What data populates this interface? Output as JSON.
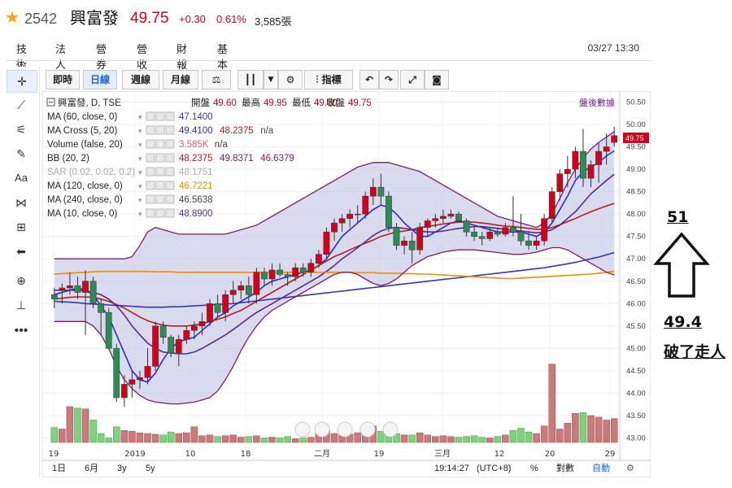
{
  "header": {
    "star": "★",
    "code": "2542",
    "name": "興富發",
    "price": "49.75",
    "change": "+0.30",
    "change_pct": "0.61%",
    "volume": "3,585張"
  },
  "tabs": [
    "技術",
    "法人",
    "營券",
    "營收",
    "財報",
    "基本"
  ],
  "tabs_active": 0,
  "datetime": "03/27 13:30",
  "toolbar": {
    "buttons": [
      "即時",
      "日線",
      "週線",
      "月線"
    ],
    "active": 1,
    "indicators": "指標"
  },
  "legend": {
    "title": "興富發, D, TSE",
    "ohlc_labels": [
      "開盤",
      "最高",
      "最低",
      "收盤"
    ],
    "ohlc_values": [
      "49.60",
      "49.95",
      "49.50",
      "49.75"
    ],
    "after_hours": "盤後數據",
    "rows": [
      {
        "label": "MA (60, close, 0)",
        "values": [
          "47.1400"
        ],
        "colors": [
          "#3a36a8"
        ]
      },
      {
        "label": "MA Cross (5, 20)",
        "values": [
          "49.4100",
          "48.2375",
          "n/a"
        ],
        "colors": [
          "#2c2cd0",
          "#b02020",
          "#444"
        ]
      },
      {
        "label": "Volume (false, 20)",
        "values": [
          "3.585K",
          "n/a"
        ],
        "colors": [
          "#e06060",
          "#444"
        ]
      },
      {
        "label": "BB (20, 2)",
        "values": [
          "48.2375",
          "49.8371",
          "46.6379"
        ],
        "colors": [
          "#b02020",
          "#7a2060",
          "#7a2060"
        ]
      },
      {
        "label": "SAR (0.02, 0.02, 0.2)",
        "values": [
          "48.1751"
        ],
        "colors": [
          "#aaaaaa"
        ]
      },
      {
        "label": "MA (120, close, 0)",
        "values": [
          "46.7221"
        ],
        "colors": [
          "#f08c00"
        ]
      },
      {
        "label": "MA (240, close, 0)",
        "values": [
          "46.5638"
        ],
        "colors": [
          "#444"
        ]
      },
      {
        "label": "MA (10, close, 0)",
        "values": [
          "48.8900"
        ],
        "colors": [
          "#5a2c80"
        ]
      }
    ]
  },
  "x_labels": [
    "19",
    "2019",
    "10",
    "18",
    "二月",
    "19",
    "三月",
    "12",
    "20",
    "29"
  ],
  "bottom": {
    "ranges": [
      "1日",
      "6月",
      "3y",
      "5y"
    ],
    "clock": "19:14:27",
    "tz": "(UTC+8)",
    "pct": "%",
    "log": "對數",
    "auto": "自動"
  },
  "price_tag": "49.75",
  "annotations": {
    "high": "51",
    "low": "49.4",
    "note": "破了走人"
  },
  "colors": {
    "up": "#d0021b",
    "down": "#2e8b57",
    "band": "#b9bbe0",
    "accent": "#1e63d6"
  },
  "chart_data": {
    "type": "candlestick",
    "ylim": [
      42.9,
      50.6
    ],
    "yticks": [
      50.5,
      50.0,
      49.5,
      49.0,
      48.5,
      48.0,
      47.5,
      47.0,
      46.5,
      46.0,
      45.5,
      45.0,
      44.5,
      44.0,
      43.5,
      43.0
    ],
    "ohlc": [
      [
        46.2,
        46.35,
        45.9,
        46.1
      ],
      [
        46.3,
        46.45,
        46.0,
        46.35
      ],
      [
        46.35,
        46.7,
        46.2,
        46.4
      ],
      [
        46.4,
        46.6,
        46.1,
        46.25
      ],
      [
        46.25,
        46.75,
        45.3,
        46.5
      ],
      [
        46.5,
        46.6,
        45.9,
        46.0
      ],
      [
        46.0,
        46.1,
        45.3,
        45.8
      ],
      [
        45.8,
        45.9,
        45.0,
        45.0
      ],
      [
        45.0,
        45.1,
        43.8,
        43.9
      ],
      [
        43.9,
        44.4,
        43.7,
        44.2
      ],
      [
        44.2,
        44.5,
        43.9,
        44.3
      ],
      [
        44.3,
        44.5,
        44.1,
        44.35
      ],
      [
        44.35,
        45.0,
        44.2,
        44.6
      ],
      [
        44.6,
        45.6,
        44.5,
        45.5
      ],
      [
        45.5,
        45.6,
        45.1,
        45.25
      ],
      [
        45.25,
        45.3,
        44.8,
        44.9
      ],
      [
        44.9,
        45.3,
        44.6,
        45.2
      ],
      [
        45.2,
        45.5,
        45.1,
        45.4
      ],
      [
        45.4,
        45.6,
        45.2,
        45.5
      ],
      [
        45.5,
        45.8,
        45.3,
        45.6
      ],
      [
        45.6,
        46.1,
        45.5,
        46.0
      ],
      [
        46.0,
        46.2,
        45.7,
        45.8
      ],
      [
        45.8,
        46.3,
        45.6,
        46.2
      ],
      [
        46.2,
        46.5,
        46.0,
        46.3
      ],
      [
        46.3,
        46.5,
        46.1,
        46.4
      ],
      [
        46.4,
        46.6,
        46.0,
        46.2
      ],
      [
        46.2,
        46.8,
        46.0,
        46.7
      ],
      [
        46.7,
        46.8,
        46.4,
        46.55
      ],
      [
        46.55,
        46.9,
        46.4,
        46.75
      ],
      [
        46.75,
        46.9,
        46.6,
        46.65
      ],
      [
        46.65,
        46.7,
        46.4,
        46.6
      ],
      [
        46.6,
        46.9,
        46.5,
        46.8
      ],
      [
        46.8,
        46.9,
        46.6,
        46.7
      ],
      [
        46.7,
        47.0,
        46.6,
        46.9
      ],
      [
        46.9,
        47.2,
        46.8,
        47.1
      ],
      [
        47.1,
        47.7,
        47.0,
        47.6
      ],
      [
        47.6,
        47.9,
        47.4,
        47.8
      ],
      [
        47.8,
        48.0,
        47.6,
        47.9
      ],
      [
        47.9,
        48.1,
        47.7,
        48.0
      ],
      [
        48.0,
        48.2,
        47.8,
        48.0
      ],
      [
        48.0,
        48.5,
        47.9,
        48.4
      ],
      [
        48.4,
        48.8,
        48.2,
        48.6
      ],
      [
        48.6,
        48.9,
        48.2,
        48.4
      ],
      [
        48.4,
        48.5,
        47.6,
        47.7
      ],
      [
        47.7,
        47.8,
        47.2,
        47.3
      ],
      [
        47.3,
        47.5,
        47.1,
        47.4
      ],
      [
        47.4,
        47.6,
        46.9,
        47.2
      ],
      [
        47.2,
        47.8,
        47.1,
        47.7
      ],
      [
        47.7,
        47.9,
        47.5,
        47.85
      ],
      [
        47.85,
        48.0,
        47.7,
        47.9
      ],
      [
        47.9,
        48.1,
        47.8,
        47.95
      ],
      [
        47.95,
        48.1,
        47.9,
        48.0
      ],
      [
        48.0,
        48.05,
        47.8,
        47.85
      ],
      [
        47.85,
        47.9,
        47.5,
        47.6
      ],
      [
        47.6,
        47.7,
        47.4,
        47.5
      ],
      [
        47.5,
        47.6,
        47.3,
        47.45
      ],
      [
        47.45,
        47.7,
        47.4,
        47.6
      ],
      [
        47.6,
        47.7,
        47.5,
        47.55
      ],
      [
        47.55,
        47.8,
        47.5,
        47.7
      ],
      [
        47.7,
        48.4,
        47.5,
        47.6
      ],
      [
        47.6,
        48.0,
        47.3,
        47.4
      ],
      [
        47.4,
        47.6,
        47.2,
        47.3
      ],
      [
        47.3,
        47.5,
        47.2,
        47.4
      ],
      [
        47.4,
        48.0,
        47.3,
        47.9
      ],
      [
        47.9,
        48.6,
        47.8,
        48.5
      ],
      [
        48.5,
        49.0,
        48.3,
        48.9
      ],
      [
        48.9,
        49.3,
        48.6,
        49.0
      ],
      [
        49.0,
        49.5,
        48.8,
        49.4
      ],
      [
        49.4,
        49.9,
        48.6,
        48.8
      ],
      [
        48.8,
        49.2,
        48.6,
        49.1
      ],
      [
        49.1,
        49.6,
        48.7,
        49.4
      ],
      [
        49.4,
        49.8,
        49.1,
        49.5
      ],
      [
        49.6,
        49.95,
        49.5,
        49.75
      ]
    ],
    "volume_ylim": [
      0,
      12
    ],
    "volume": [
      2.0,
      1.8,
      4.8,
      4.6,
      4.5,
      3.0,
      1.2,
      0.6,
      2.1,
      1.6,
      1.5,
      1.3,
      1.2,
      1.1,
      1.0,
      1.4,
      1.2,
      1.3,
      2.1,
      0.9,
      1.0,
      0.8,
      0.9,
      1.0,
      0.7,
      0.8,
      0.9,
      0.6,
      0.7,
      0.6,
      0.8,
      0.5,
      0.6,
      0.7,
      1.4,
      1.6,
      1.2,
      1.0,
      1.1,
      1.3,
      1.8,
      2.2,
      1.5,
      1.3,
      1.2,
      1.0,
      1.0,
      1.3,
      1.0,
      0.8,
      0.9,
      0.8,
      0.7,
      0.8,
      0.9,
      0.7,
      0.6,
      0.8,
      1.0,
      1.6,
      1.9,
      1.4,
      1.2,
      2.2,
      10.5,
      1.8,
      2.6,
      3.9,
      4.0,
      3.6,
      3.4,
      3.0,
      3.2
    ],
    "series": [
      {
        "name": "MA (5)",
        "color": "#2c2cd0",
        "values": [
          46.2,
          46.25,
          46.3,
          46.35,
          46.3,
          46.2,
          45.95,
          45.7,
          45.3,
          44.9,
          44.5,
          44.3,
          44.25,
          44.45,
          44.75,
          45.0,
          45.15,
          45.2,
          45.25,
          45.4,
          45.55,
          45.7,
          45.8,
          45.95,
          46.05,
          46.15,
          46.25,
          46.4,
          46.5,
          46.55,
          46.6,
          46.65,
          46.7,
          46.75,
          46.85,
          47.0,
          47.25,
          47.5,
          47.65,
          47.8,
          47.95,
          48.1,
          48.2,
          48.15,
          48.0,
          47.8,
          47.65,
          47.5,
          47.5,
          47.6,
          47.7,
          47.8,
          47.85,
          47.8,
          47.75,
          47.7,
          47.65,
          47.6,
          47.6,
          47.6,
          47.6,
          47.55,
          47.5,
          47.6,
          47.8,
          48.1,
          48.4,
          48.75,
          48.95,
          49.05,
          49.15,
          49.3,
          49.41
        ]
      },
      {
        "name": "MA (20)",
        "color": "#b02020",
        "values": [
          46.1,
          46.12,
          46.14,
          46.15,
          46.15,
          46.14,
          46.1,
          46.05,
          45.98,
          45.9,
          45.8,
          45.7,
          45.62,
          45.56,
          45.52,
          45.5,
          45.5,
          45.5,
          45.52,
          45.55,
          45.6,
          45.65,
          45.7,
          45.78,
          45.85,
          45.95,
          46.05,
          46.15,
          46.25,
          46.35,
          46.45,
          46.55,
          46.65,
          46.75,
          46.85,
          46.95,
          47.05,
          47.12,
          47.2,
          47.28,
          47.35,
          47.42,
          47.5,
          47.55,
          47.6,
          47.62,
          47.65,
          47.7,
          47.72,
          47.75,
          47.78,
          47.8,
          47.82,
          47.82,
          47.82,
          47.8,
          47.78,
          47.75,
          47.73,
          47.72,
          47.7,
          47.68,
          47.66,
          47.66,
          47.7,
          47.76,
          47.83,
          47.9,
          47.98,
          48.05,
          48.12,
          48.18,
          48.24
        ]
      },
      {
        "name": "MA (10)",
        "color": "#5a2c80",
        "values": [
          46.3,
          46.3,
          46.3,
          46.3,
          46.28,
          46.25,
          46.2,
          46.1,
          45.95,
          45.75,
          45.5,
          45.3,
          45.12,
          45.0,
          44.92,
          44.9,
          44.88,
          44.88,
          44.92,
          45.0,
          45.1,
          45.2,
          45.3,
          45.42,
          45.55,
          45.68,
          45.8,
          45.9,
          46.0,
          46.1,
          46.2,
          46.3,
          46.4,
          46.5,
          46.6,
          46.72,
          46.85,
          47.0,
          47.12,
          47.25,
          47.38,
          47.52,
          47.62,
          47.68,
          47.7,
          47.68,
          47.65,
          47.62,
          47.6,
          47.6,
          47.62,
          47.65,
          47.68,
          47.7,
          47.72,
          47.72,
          47.7,
          47.68,
          47.66,
          47.64,
          47.62,
          47.6,
          47.58,
          47.6,
          47.65,
          47.75,
          47.9,
          48.05,
          48.25,
          48.45,
          48.6,
          48.75,
          48.89
        ]
      },
      {
        "name": "MA (60)",
        "color": "#3a36a8",
        "values": [
          46.05,
          46.04,
          46.03,
          46.02,
          46.0,
          45.99,
          45.98,
          45.97,
          45.96,
          45.95,
          45.94,
          45.93,
          45.92,
          45.92,
          45.92,
          45.93,
          45.93,
          45.94,
          45.95,
          45.96,
          45.97,
          45.98,
          45.99,
          46.0,
          46.02,
          46.04,
          46.06,
          46.08,
          46.1,
          46.12,
          46.14,
          46.16,
          46.18,
          46.2,
          46.22,
          46.24,
          46.26,
          46.28,
          46.3,
          46.32,
          46.34,
          46.36,
          46.38,
          46.4,
          46.42,
          46.44,
          46.46,
          46.48,
          46.5,
          46.52,
          46.54,
          46.56,
          46.58,
          46.6,
          46.62,
          46.64,
          46.66,
          46.68,
          46.7,
          46.72,
          46.74,
          46.76,
          46.78,
          46.8,
          46.83,
          46.86,
          46.89,
          46.92,
          46.96,
          47.0,
          47.04,
          47.09,
          47.14
        ]
      },
      {
        "name": "MA (120)",
        "color": "#f08c00",
        "values": [
          46.66,
          46.67,
          46.68,
          46.69,
          46.7,
          46.71,
          46.72,
          46.72,
          46.72,
          46.72,
          46.72,
          46.72,
          46.72,
          46.71,
          46.71,
          46.71,
          46.7,
          46.7,
          46.7,
          46.7,
          46.7,
          46.7,
          46.7,
          46.7,
          46.7,
          46.7,
          46.7,
          46.7,
          46.7,
          46.7,
          46.7,
          46.7,
          46.7,
          46.7,
          46.7,
          46.7,
          46.7,
          46.7,
          46.7,
          46.69,
          46.69,
          46.69,
          46.68,
          46.68,
          46.68,
          46.67,
          46.67,
          46.66,
          46.66,
          46.65,
          46.64,
          46.63,
          46.62,
          46.61,
          46.6,
          46.59,
          46.58,
          46.57,
          46.56,
          46.56,
          46.57,
          46.58,
          46.59,
          46.6,
          46.61,
          46.62,
          46.63,
          46.64,
          46.65,
          46.66,
          46.68,
          46.7,
          46.72
        ]
      },
      {
        "name": "BB upper",
        "color": "#7a2060",
        "values": [
          47.0,
          47.0,
          47.0,
          47.0,
          47.0,
          47.0,
          47.0,
          47.0,
          47.0,
          47.0,
          47.05,
          47.3,
          47.6,
          47.7,
          47.65,
          47.6,
          47.55,
          47.55,
          47.55,
          47.55,
          47.55,
          47.55,
          47.55,
          47.6,
          47.65,
          47.7,
          47.75,
          47.85,
          47.95,
          48.05,
          48.15,
          48.25,
          48.35,
          48.45,
          48.55,
          48.65,
          48.75,
          48.85,
          48.95,
          49.05,
          49.1,
          49.15,
          49.15,
          49.15,
          49.1,
          49.05,
          49.0,
          48.95,
          48.85,
          48.75,
          48.65,
          48.55,
          48.45,
          48.35,
          48.25,
          48.15,
          48.05,
          47.95,
          47.9,
          47.85,
          47.8,
          47.75,
          47.7,
          47.8,
          48.0,
          48.35,
          48.7,
          49.0,
          49.25,
          49.45,
          49.6,
          49.72,
          49.84
        ]
      },
      {
        "name": "BB lower",
        "color": "#7a2060",
        "values": [
          45.6,
          45.6,
          45.6,
          45.6,
          45.6,
          45.5,
          45.3,
          45.0,
          44.6,
          44.3,
          44.1,
          43.95,
          43.85,
          43.8,
          43.78,
          43.76,
          43.76,
          43.78,
          43.8,
          43.85,
          43.9,
          44.05,
          44.3,
          44.6,
          44.95,
          45.25,
          45.5,
          45.7,
          45.85,
          45.95,
          46.05,
          46.15,
          46.25,
          46.35,
          46.45,
          46.55,
          46.65,
          46.7,
          46.7,
          46.65,
          46.55,
          46.45,
          46.4,
          46.45,
          46.55,
          46.7,
          46.85,
          46.95,
          47.05,
          47.1,
          47.15,
          47.18,
          47.2,
          47.2,
          47.2,
          47.18,
          47.16,
          47.14,
          47.12,
          47.1,
          47.1,
          47.12,
          47.15,
          47.2,
          47.25,
          47.25,
          47.2,
          47.1,
          47.0,
          46.9,
          46.8,
          46.7,
          46.64
        ]
      }
    ]
  }
}
